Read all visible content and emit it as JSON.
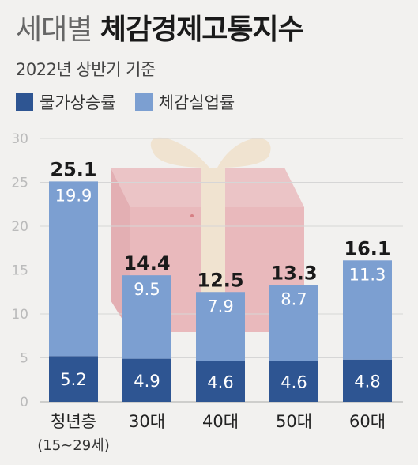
{
  "title": {
    "light": "세대별",
    "bold": "체감경제고통지수"
  },
  "subtitle": "2022년 상반기 기준",
  "colors": {
    "dark": "#2e5592",
    "light": "#7c9fd1",
    "grid": "#d6d6d6",
    "axis": "#aaaaaa"
  },
  "chart_data": {
    "type": "bar",
    "stacked": true,
    "categories": [
      "청년층",
      "30대",
      "40대",
      "50대",
      "60대"
    ],
    "category_sublabels": [
      "(15~29세)",
      "",
      "",
      "",
      ""
    ],
    "series": [
      {
        "name": "물가상승률",
        "values": [
          5.2,
          4.9,
          4.6,
          4.6,
          4.8
        ],
        "color": "#2e5592"
      },
      {
        "name": "체감실업률",
        "values": [
          19.9,
          9.5,
          7.9,
          8.7,
          11.3
        ],
        "color": "#7c9fd1"
      }
    ],
    "totals": [
      25.1,
      14.4,
      12.5,
      13.3,
      16.1
    ],
    "ylim": [
      0,
      30
    ],
    "yticks": [
      0,
      5,
      10,
      15,
      20,
      25,
      30
    ],
    "grid": true,
    "legend_position": "top-left"
  }
}
